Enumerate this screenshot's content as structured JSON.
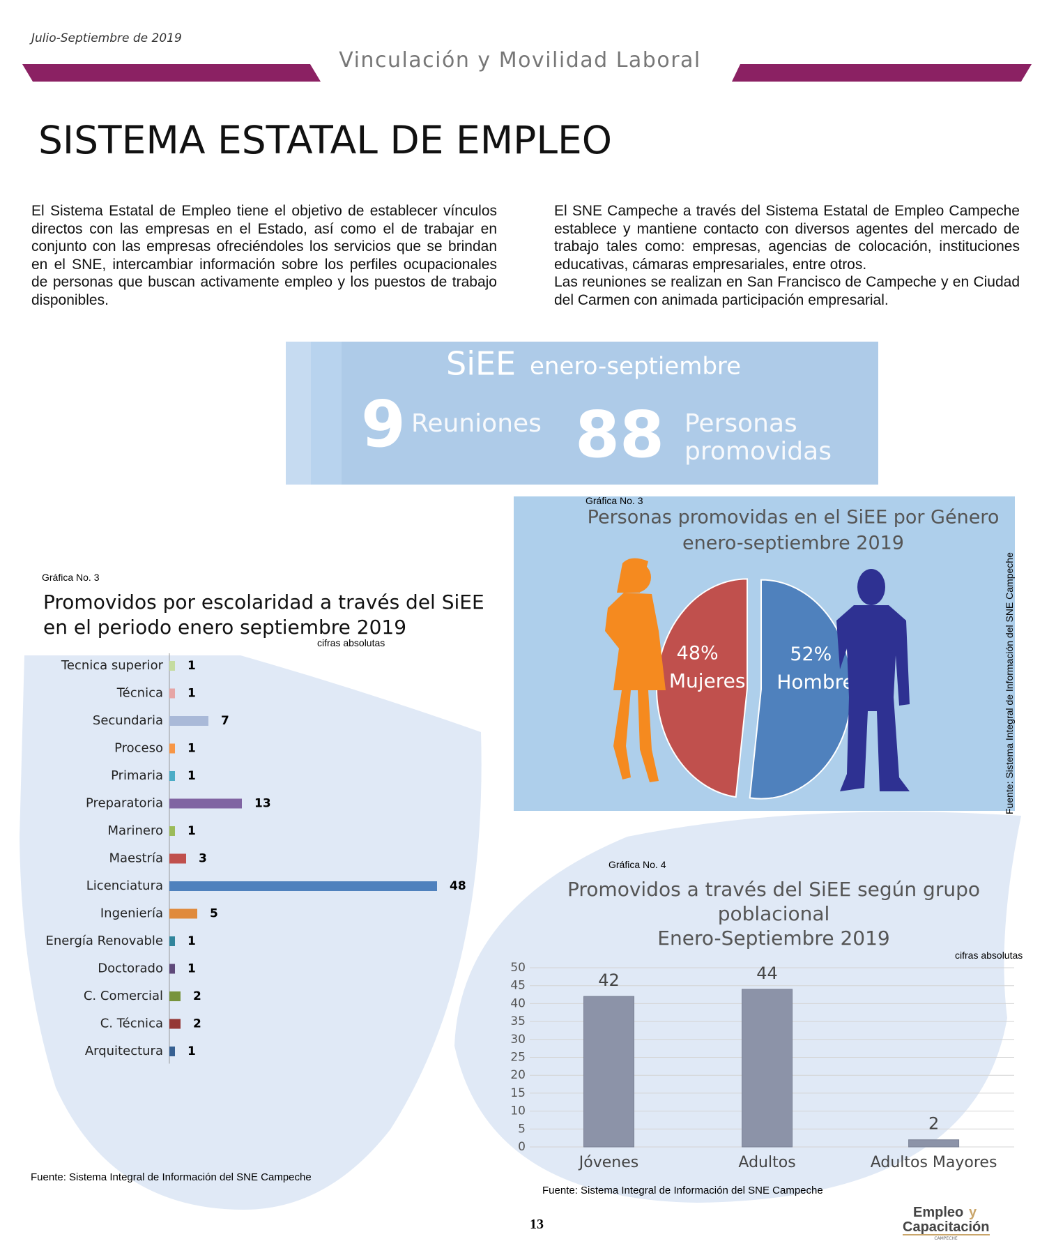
{
  "header": {
    "date": "Julio-Septiembre de 2019",
    "section": "Vinculación y Movilidad Laboral"
  },
  "title": "SISTEMA ESTATAL DE EMPLEO",
  "paragraphs": [
    "El Sistema Estatal de Empleo  tiene el objetivo de establecer vínculos directos con las empresas en el Estado, así como el de trabajar en conjunto con las empresas ofreciéndoles los servicios que se brindan en el SNE, intercambiar información sobre los perfiles ocupacionales de personas que buscan activamente empleo y los puestos de trabajo disponibles.",
    "El SNE Campeche  a través del Sistema Estatal de Empleo Campeche establece y mantiene contacto con diversos agentes del mercado de trabajo tales como: empresas, agencias de colocación, instituciones educativas, cámaras empresariales, entre otros.",
    "Las reuniones se realizan en San Francisco de Campeche y en Ciudad del Carmen con animada participación empresarial."
  ],
  "stats": {
    "heading": "SiEE",
    "period": "enero-septiembre",
    "items": [
      {
        "value": 9,
        "label": "Reuniones"
      },
      {
        "value": 88,
        "label": "Personas promovidas"
      }
    ]
  },
  "chart_data": [
    {
      "type": "hbar",
      "label": "Gráfica No. 3",
      "title": [
        "Promovidos por escolaridad a través del  SiEE",
        "en el periodo enero septiembre 2019"
      ],
      "subtitle": "cifras absolutas",
      "categories": [
        "Tecnica superior",
        "Técnica",
        "Secundaria",
        "Proceso",
        "Primaria",
        "Preparatoria",
        "Marinero",
        "Maestría",
        "Licenciatura",
        "Ingeniería",
        "Energía Renovable",
        "Doctorado",
        "C. Comercial",
        "C. Técnica",
        "Arquitectura"
      ],
      "values": [
        1,
        1,
        7,
        1,
        1,
        13,
        1,
        3,
        48,
        5,
        1,
        1,
        2,
        2,
        1
      ],
      "colors": [
        "#c5dca0",
        "#e6a5a5",
        "#a9b9d8",
        "#f79646",
        "#4bacc6",
        "#8064a2",
        "#9bbb59",
        "#c0504d",
        "#4f81bd",
        "#e08a3c",
        "#31859c",
        "#5f497a",
        "#77933c",
        "#953735",
        "#366092"
      ],
      "source": "Fuente: Sistema Integral de Información del  SNE Campeche"
    },
    {
      "type": "pie",
      "label": "Gráfica No. 3",
      "title": [
        "Personas promovidas en el SiEE por Género",
        "enero-septiembre 2019"
      ],
      "categories": [
        "Mujeres",
        "Hombres"
      ],
      "values": [
        48,
        52
      ],
      "value_labels": [
        "48%",
        "52%"
      ],
      "colors": [
        "#c0504d",
        "#4f81bd"
      ],
      "source": "Fuente: Sistema Integral de Información del  SNE Campeche"
    },
    {
      "type": "bar",
      "label": "Gráfica No. 4",
      "title": [
        "Promovidos a través del SiEE  según grupo",
        "poblacional",
        "Enero-Septiembre 2019"
      ],
      "subtitle": "cifras absolutas",
      "categories": [
        "Jóvenes",
        "Adultos",
        "Adultos Mayores"
      ],
      "values": [
        42,
        44,
        2
      ],
      "color": "#8c93a8",
      "ylim": [
        0,
        50
      ],
      "yticks": [
        0,
        5,
        10,
        15,
        20,
        25,
        30,
        35,
        40,
        45,
        50
      ],
      "grid": true,
      "source": "Fuente: Sistema Integral de Información del  SNE Campeche"
    }
  ],
  "footer": {
    "page": "13",
    "logo": [
      "Empleo",
      "y",
      "Capacitación",
      "CAMPECHE"
    ]
  }
}
